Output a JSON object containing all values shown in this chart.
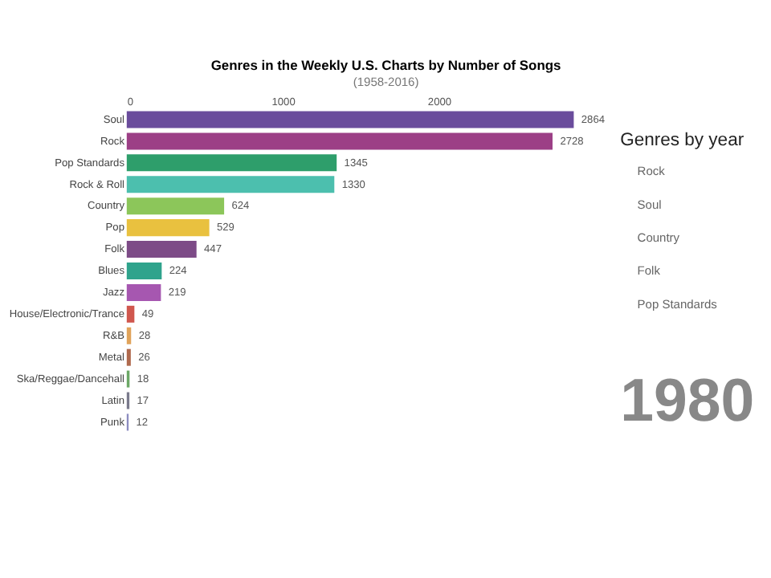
{
  "chart_data": {
    "type": "bar",
    "orientation": "horizontal",
    "title": "Genres in the Weekly U.S. Charts by Number of Songs",
    "subtitle": "(1958-2016)",
    "categories": [
      "Soul",
      "Rock",
      "Pop Standards",
      "Rock & Roll",
      "Country",
      "Pop",
      "Folk",
      "Blues",
      "Jazz",
      "House/Electronic/Trance",
      "R&B",
      "Metal",
      "Ska/Reggae/Dancehall",
      "Latin",
      "Punk"
    ],
    "values": [
      2864,
      2728,
      1345,
      1330,
      624,
      529,
      447,
      224,
      219,
      49,
      28,
      26,
      18,
      17,
      12
    ],
    "colors": [
      "#6a4c9c",
      "#9c3f86",
      "#2e9e6b",
      "#4cbfae",
      "#8cc65a",
      "#e9c13f",
      "#7d4b87",
      "#2fa38c",
      "#a657b0",
      "#d0574e",
      "#e0a35a",
      "#b06a4e",
      "#6ca866",
      "#7a7a8c",
      "#8c8cc0"
    ],
    "xlim": [
      0,
      2900
    ],
    "xticks": [
      0,
      1000,
      2000
    ],
    "grid": false,
    "data_labels": true,
    "annotations": [
      "Genres by year",
      "Rock",
      "Soul",
      "Country",
      "Folk",
      "Pop Standards",
      "1980"
    ]
  }
}
